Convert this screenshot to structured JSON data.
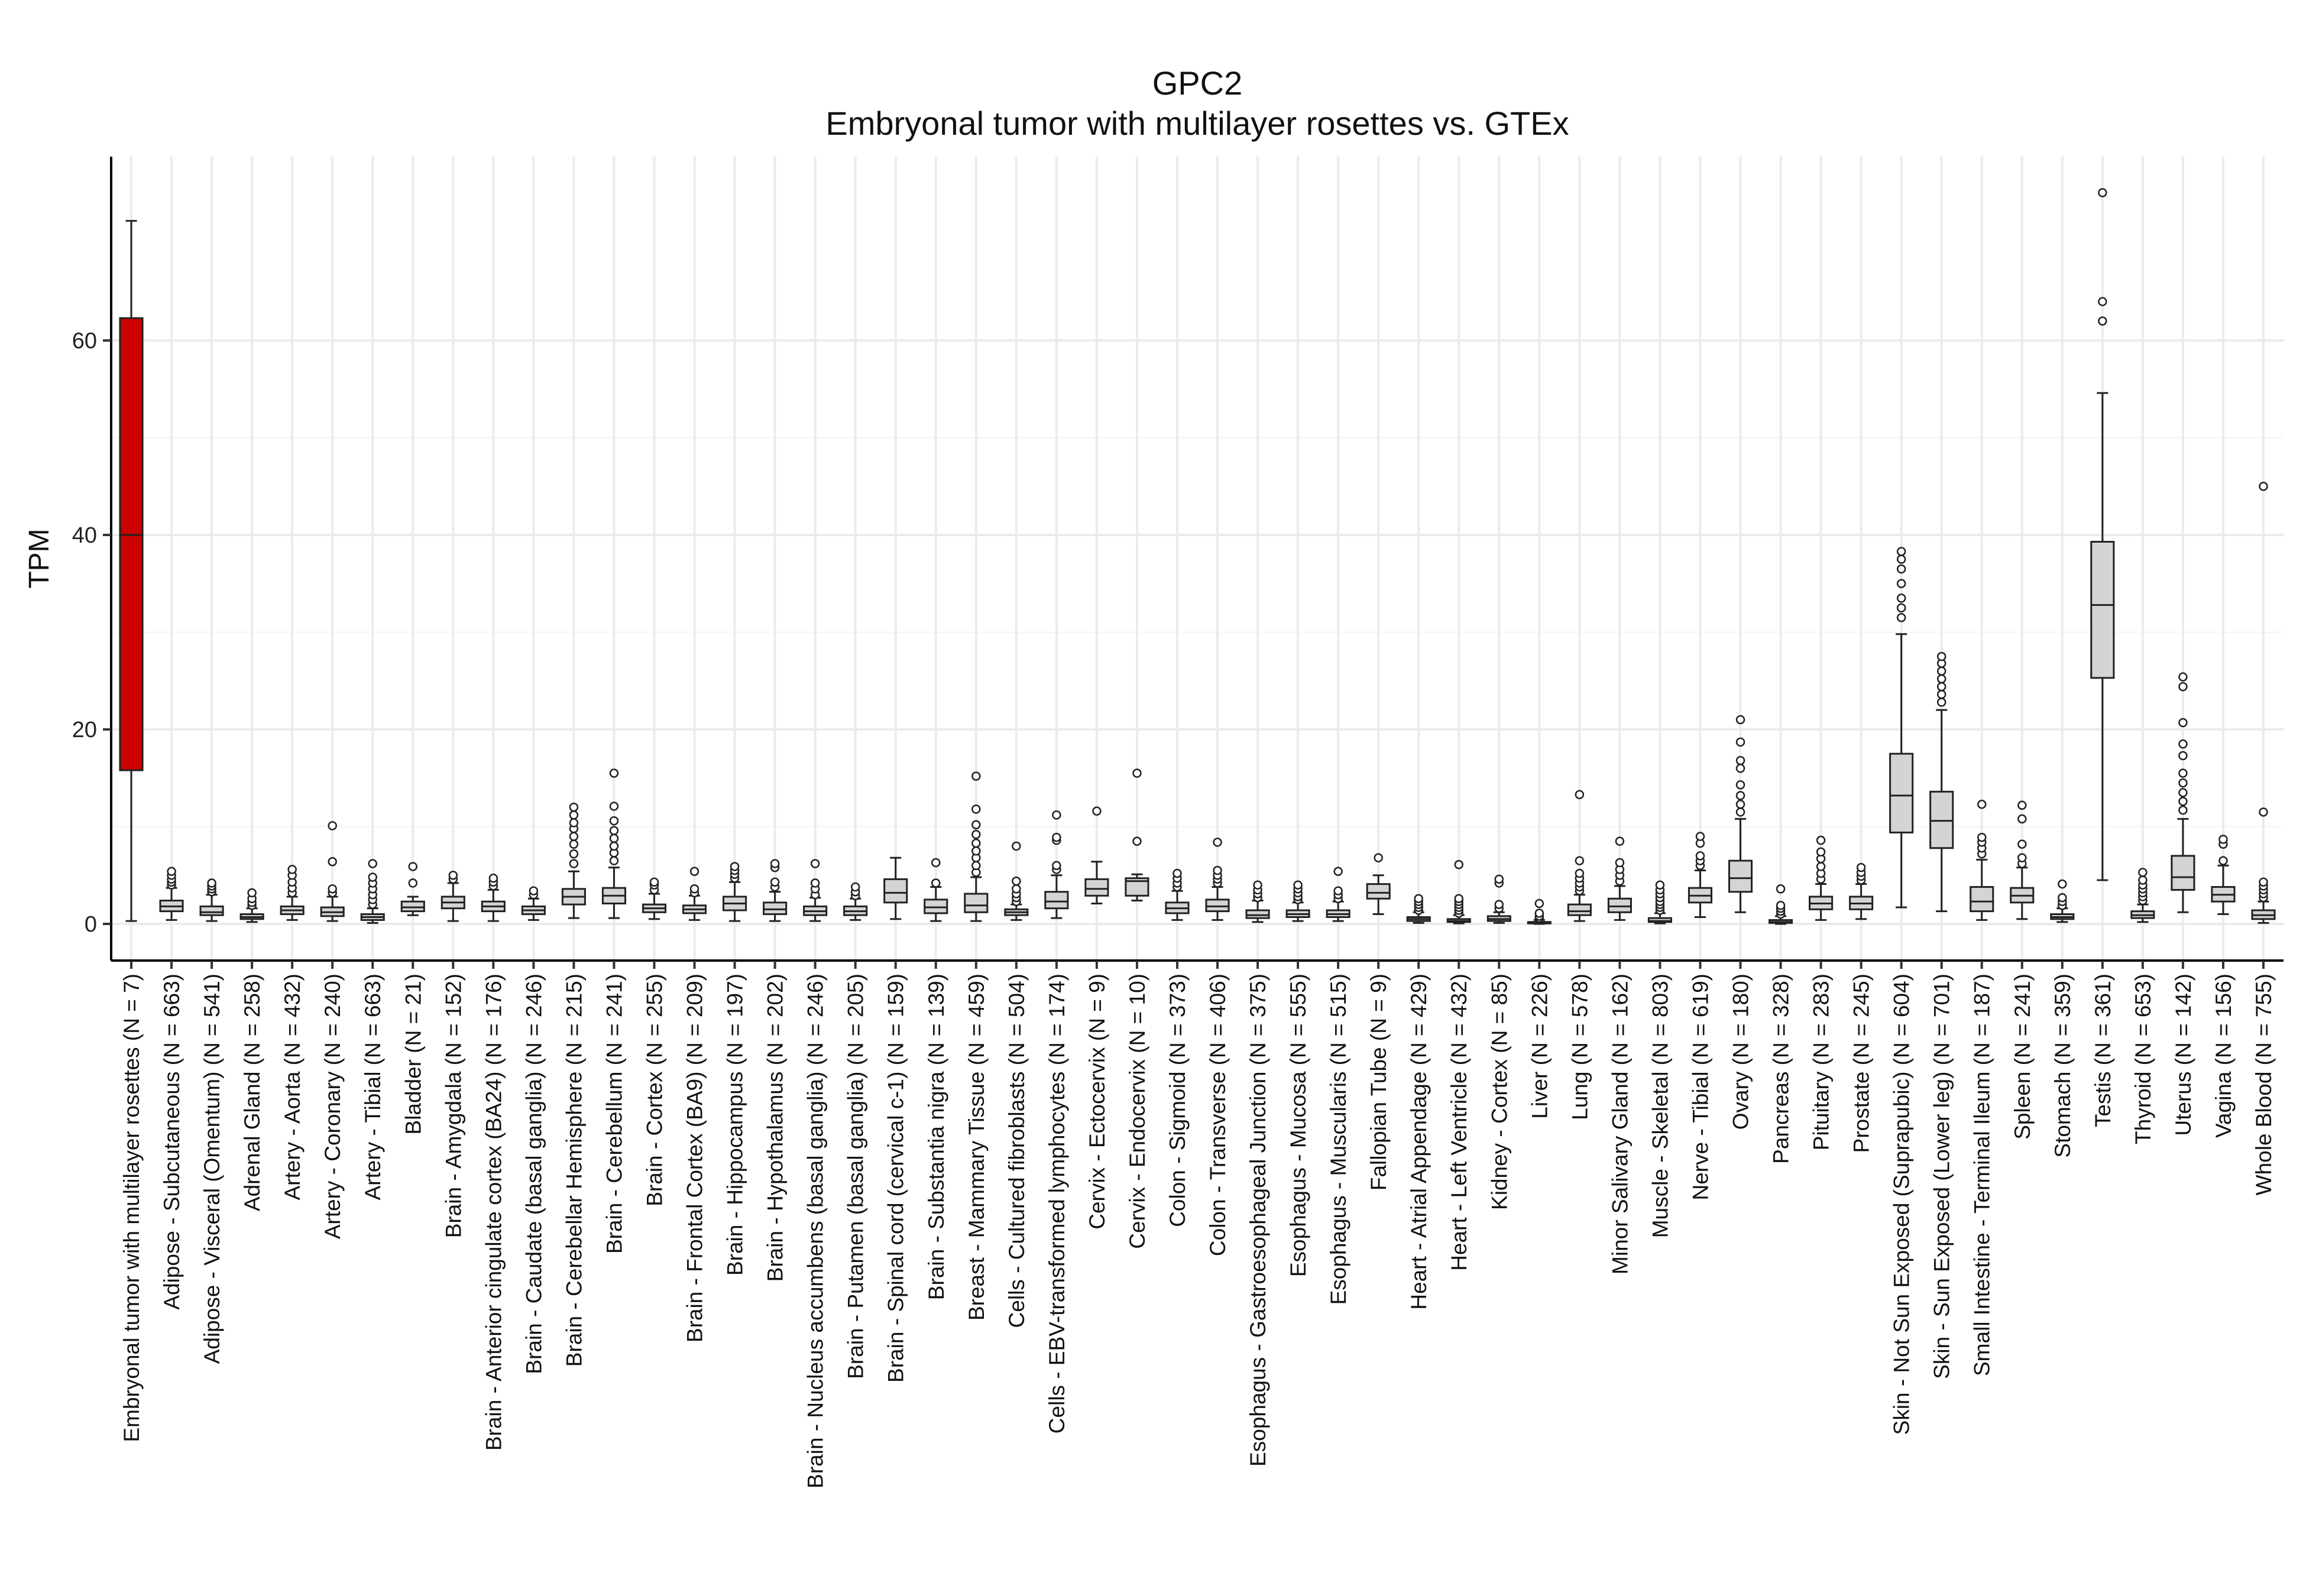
{
  "chart_data": {
    "type": "boxplot",
    "title": "GPC2",
    "subtitle": "Embryonal tumor with multilayer rosettes vs. GTEx",
    "xlabel": "",
    "ylabel": "TPM",
    "ylim": [
      -4,
      79
    ],
    "yticks": [
      0,
      20,
      40,
      60
    ],
    "grid": true,
    "legend": "none",
    "colors": {
      "highlight": "#cc0000",
      "default": "#d4d4d4",
      "stroke": "#222222",
      "grid": "#ebebeb"
    },
    "series": [
      {
        "name": "Embryonal tumor with multilayer rosettes (N = 7)",
        "highlight": true,
        "min": 0.3,
        "q1": 15.8,
        "median": 40,
        "q3": 62.3,
        "max": 72.3,
        "outliers": []
      },
      {
        "name": "Adipose - Subcutaneous (N = 663)",
        "min": 0.4,
        "q1": 1.3,
        "median": 1.8,
        "q3": 2.4,
        "max": 3.7,
        "outliers": [
          4,
          4.3,
          4.6,
          5,
          5.4
        ]
      },
      {
        "name": "Adipose - Visceral (Omentum) (N = 541)",
        "min": 0.3,
        "q1": 0.9,
        "median": 1.2,
        "q3": 1.8,
        "max": 3,
        "outliers": [
          3.3,
          3.6,
          3.9,
          4.2
        ]
      },
      {
        "name": "Adrenal Gland (N = 258)",
        "min": 0.2,
        "q1": 0.5,
        "median": 0.7,
        "q3": 1,
        "max": 1.6,
        "outliers": [
          1.9,
          2.2,
          2.6,
          3.2
        ]
      },
      {
        "name": "Artery - Aorta (N = 432)",
        "min": 0.4,
        "q1": 1,
        "median": 1.4,
        "q3": 1.8,
        "max": 2.8,
        "outliers": [
          3.2,
          3.7,
          4.3,
          5,
          5.6
        ]
      },
      {
        "name": "Artery - Coronary (N = 240)",
        "min": 0.3,
        "q1": 0.8,
        "median": 1.2,
        "q3": 1.7,
        "max": 2.8,
        "outliers": [
          3.2,
          3.6,
          6.4,
          10.1
        ]
      },
      {
        "name": "Artery - Tibial (N = 663)",
        "min": 0.1,
        "q1": 0.4,
        "median": 0.7,
        "q3": 1,
        "max": 1.6,
        "outliers": [
          2,
          2.5,
          3,
          3.6,
          4.2,
          4.8,
          6.2
        ]
      },
      {
        "name": "Bladder (N = 21)",
        "min": 0.9,
        "q1": 1.3,
        "median": 1.7,
        "q3": 2.3,
        "max": 2.8,
        "outliers": [
          4.2,
          5.9
        ]
      },
      {
        "name": "Brain - Amygdala (N = 152)",
        "min": 0.3,
        "q1": 1.6,
        "median": 2.2,
        "q3": 2.8,
        "max": 4.2,
        "outliers": [
          4.6,
          5
        ]
      },
      {
        "name": "Brain - Anterior cingulate cortex (BA24) (N = 176)",
        "min": 0.3,
        "q1": 1.3,
        "median": 1.8,
        "q3": 2.3,
        "max": 3.5,
        "outliers": [
          3.9,
          4.3,
          4.7
        ]
      },
      {
        "name": "Brain - Caudate (basal ganglia) (N = 246)",
        "min": 0.4,
        "q1": 1,
        "median": 1.4,
        "q3": 1.8,
        "max": 2.6,
        "outliers": [
          3,
          3.4
        ]
      },
      {
        "name": "Brain - Cerebellar Hemisphere (N = 215)",
        "min": 0.6,
        "q1": 2,
        "median": 2.8,
        "q3": 3.6,
        "max": 5.4,
        "outliers": [
          6.2,
          7.2,
          8.2,
          9,
          9.8,
          10.4,
          11.2,
          12
        ]
      },
      {
        "name": "Brain - Cerebellum (N = 241)",
        "min": 0.6,
        "q1": 2.1,
        "median": 2.9,
        "q3": 3.7,
        "max": 5.8,
        "outliers": [
          6.5,
          7.3,
          8,
          8.8,
          9.6,
          10.6,
          12.1,
          15.5
        ]
      },
      {
        "name": "Brain - Cortex (N = 255)",
        "min": 0.5,
        "q1": 1.2,
        "median": 1.6,
        "q3": 2,
        "max": 3.1,
        "outliers": [
          3.5,
          4,
          4.3
        ]
      },
      {
        "name": "Brain - Frontal Cortex (BA9) (N = 209)",
        "min": 0.4,
        "q1": 1.1,
        "median": 1.5,
        "q3": 1.9,
        "max": 2.9,
        "outliers": [
          3.2,
          3.6,
          5.4
        ]
      },
      {
        "name": "Brain - Hippocampus (N = 197)",
        "min": 0.3,
        "q1": 1.4,
        "median": 2.1,
        "q3": 2.8,
        "max": 4.3,
        "outliers": [
          4.7,
          5.1,
          5.5,
          5.9
        ]
      },
      {
        "name": "Brain - Hypothalamus (N = 202)",
        "min": 0.3,
        "q1": 1,
        "median": 1.5,
        "q3": 2.2,
        "max": 3.3,
        "outliers": [
          3.8,
          4.3,
          5.8,
          6.2
        ]
      },
      {
        "name": "Brain - Nucleus accumbens (basal ganglia) (N = 246)",
        "min": 0.3,
        "q1": 0.9,
        "median": 1.3,
        "q3": 1.8,
        "max": 2.7,
        "outliers": [
          3,
          3.6,
          4.2,
          6.2
        ]
      },
      {
        "name": "Brain - Putamen (basal ganglia) (N = 205)",
        "min": 0.4,
        "q1": 0.9,
        "median": 1.3,
        "q3": 1.8,
        "max": 2.6,
        "outliers": [
          2.9,
          3.3,
          3.8
        ]
      },
      {
        "name": "Brain - Spinal cord (cervical c-1) (N = 159)",
        "min": 0.5,
        "q1": 2.2,
        "median": 3.2,
        "q3": 4.6,
        "max": 6.8,
        "outliers": []
      },
      {
        "name": "Brain - Substantia nigra (N = 139)",
        "min": 0.3,
        "q1": 1.1,
        "median": 1.7,
        "q3": 2.5,
        "max": 3.8,
        "outliers": [
          4.2,
          6.3
        ]
      },
      {
        "name": "Breast - Mammary Tissue (N = 459)",
        "min": 0.3,
        "q1": 1.2,
        "median": 1.9,
        "q3": 3.1,
        "max": 4.8,
        "outliers": [
          5.3,
          6,
          6.8,
          7.5,
          8.3,
          9.2,
          10.2,
          11.8,
          15.2
        ]
      },
      {
        "name": "Cells - Cultured fibroblasts (N = 504)",
        "min": 0.4,
        "q1": 0.9,
        "median": 1.2,
        "q3": 1.5,
        "max": 2,
        "outliers": [
          2.3,
          2.7,
          3.1,
          3.6,
          4.4,
          8
        ]
      },
      {
        "name": "Cells - EBV-transformed lymphocytes (N = 174)",
        "min": 0.6,
        "q1": 1.6,
        "median": 2.3,
        "q3": 3.3,
        "max": 5,
        "outliers": [
          5.6,
          6,
          8.6,
          8.9,
          11.2
        ]
      },
      {
        "name": "Cervix - Ectocervix (N = 9)",
        "min": 2.1,
        "q1": 2.9,
        "median": 3.6,
        "q3": 4.6,
        "max": 6.4,
        "outliers": [
          11.6
        ]
      },
      {
        "name": "Cervix - Endocervix (N = 10)",
        "min": 2.4,
        "q1": 2.9,
        "median": 4.4,
        "q3": 4.7,
        "max": 5.1,
        "outliers": [
          8.5,
          15.5
        ]
      },
      {
        "name": "Colon - Sigmoid (N = 373)",
        "min": 0.4,
        "q1": 1.1,
        "median": 1.6,
        "q3": 2.2,
        "max": 3.4,
        "outliers": [
          3.8,
          4.2,
          4.7,
          5.2
        ]
      },
      {
        "name": "Colon - Transverse (N = 406)",
        "min": 0.4,
        "q1": 1.3,
        "median": 1.8,
        "q3": 2.5,
        "max": 3.8,
        "outliers": [
          4.2,
          4.6,
          5,
          5.5,
          8.4
        ]
      },
      {
        "name": "Esophagus - Gastroesophageal Junction (N = 375)",
        "min": 0.2,
        "q1": 0.6,
        "median": 0.9,
        "q3": 1.4,
        "max": 2.4,
        "outliers": [
          2.7,
          3.1,
          3.5,
          4
        ]
      },
      {
        "name": "Esophagus - Mucosa (N = 555)",
        "min": 0.3,
        "q1": 0.7,
        "median": 1,
        "q3": 1.4,
        "max": 2.2,
        "outliers": [
          2.5,
          2.8,
          3.2,
          3.6,
          4
        ]
      },
      {
        "name": "Esophagus - Muscularis (N = 515)",
        "min": 0.3,
        "q1": 0.7,
        "median": 1,
        "q3": 1.4,
        "max": 2.3,
        "outliers": [
          2.6,
          3,
          3.4,
          5.4
        ]
      },
      {
        "name": "Fallopian Tube (N = 9)",
        "min": 1,
        "q1": 2.6,
        "median": 3.2,
        "q3": 4.1,
        "max": 5,
        "outliers": [
          6.8
        ]
      },
      {
        "name": "Heart - Atrial Appendage (N = 429)",
        "min": 0.1,
        "q1": 0.3,
        "median": 0.5,
        "q3": 0.7,
        "max": 1.2,
        "outliers": [
          1.4,
          1.7,
          2,
          2.3,
          2.6
        ]
      },
      {
        "name": "Heart - Left Ventricle (N = 432)",
        "min": 0.05,
        "q1": 0.2,
        "median": 0.3,
        "q3": 0.5,
        "max": 0.9,
        "outliers": [
          1.1,
          1.4,
          1.7,
          2,
          2.3,
          2.6,
          6.1
        ]
      },
      {
        "name": "Kidney - Cortex (N = 85)",
        "min": 0.1,
        "q1": 0.3,
        "median": 0.5,
        "q3": 0.8,
        "max": 1.2,
        "outliers": [
          1.6,
          2,
          4.2,
          4.6
        ]
      },
      {
        "name": "Liver (N = 226)",
        "min": 0,
        "q1": 0.05,
        "median": 0.1,
        "q3": 0.2,
        "max": 0.4,
        "outliers": [
          0.6,
          0.8,
          1.1,
          2.1
        ]
      },
      {
        "name": "Lung (N = 578)",
        "min": 0.3,
        "q1": 0.9,
        "median": 1.3,
        "q3": 2,
        "max": 3,
        "outliers": [
          3.4,
          3.8,
          4.2,
          4.7,
          5.2,
          6.5,
          13.3
        ]
      },
      {
        "name": "Minor Salivary Gland (N = 162)",
        "min": 0.4,
        "q1": 1.2,
        "median": 1.8,
        "q3": 2.6,
        "max": 3.9,
        "outliers": [
          4.4,
          5,
          5.6,
          6.3,
          8.5
        ]
      },
      {
        "name": "Muscle - Skeletal (N = 803)",
        "min": 0.05,
        "q1": 0.2,
        "median": 0.3,
        "q3": 0.6,
        "max": 1.1,
        "outliers": [
          1.4,
          1.7,
          2,
          2.3,
          2.7,
          3.1,
          3.5,
          4
        ]
      },
      {
        "name": "Nerve - Tibial (N = 619)",
        "min": 0.7,
        "q1": 2.2,
        "median": 2.9,
        "q3": 3.7,
        "max": 5.5,
        "outliers": [
          6,
          6.5,
          7,
          8.3,
          9
        ]
      },
      {
        "name": "Ovary (N = 180)",
        "min": 1.2,
        "q1": 3.3,
        "median": 4.7,
        "q3": 6.5,
        "max": 10.8,
        "outliers": [
          11.5,
          12.3,
          13.2,
          14.3,
          16,
          16.8,
          18.7,
          21
        ]
      },
      {
        "name": "Pancreas (N = 328)",
        "min": 0,
        "q1": 0.1,
        "median": 0.2,
        "q3": 0.4,
        "max": 0.8,
        "outliers": [
          1,
          1.3,
          1.6,
          1.9,
          3.6
        ]
      },
      {
        "name": "Pituitary (N = 283)",
        "min": 0.4,
        "q1": 1.5,
        "median": 2.1,
        "q3": 2.8,
        "max": 4.1,
        "outliers": [
          4.6,
          5.2,
          5.9,
          6.7,
          7.4,
          8.6
        ]
      },
      {
        "name": "Prostate (N = 245)",
        "min": 0.5,
        "q1": 1.5,
        "median": 2.1,
        "q3": 2.8,
        "max": 4.1,
        "outliers": [
          4.5,
          4.9,
          5.3,
          5.8
        ]
      },
      {
        "name": "Skin - Not Sun Exposed (Suprapubic) (N = 604)",
        "min": 1.7,
        "q1": 9.4,
        "median": 13.2,
        "q3": 17.5,
        "max": 29.8,
        "outliers": [
          31.5,
          32.5,
          33.5,
          35,
          36.5,
          37.5,
          38.3
        ]
      },
      {
        "name": "Skin - Sun Exposed (Lower leg) (N = 701)",
        "min": 1.3,
        "q1": 7.8,
        "median": 10.6,
        "q3": 13.6,
        "max": 22,
        "outliers": [
          22.8,
          23.6,
          24.4,
          25.2,
          26,
          26.8,
          27.5
        ]
      },
      {
        "name": "Small Intestine - Terminal Ileum (N = 187)",
        "min": 0.4,
        "q1": 1.3,
        "median": 2.3,
        "q3": 3.8,
        "max": 6.6,
        "outliers": [
          7.2,
          7.8,
          8.4,
          8.9,
          12.3
        ]
      },
      {
        "name": "Spleen (N = 241)",
        "min": 0.5,
        "q1": 2.2,
        "median": 2.9,
        "q3": 3.7,
        "max": 5.8,
        "outliers": [
          6.2,
          6.8,
          8.2,
          10.8,
          12.2
        ]
      },
      {
        "name": "Stomach (N = 359)",
        "min": 0.2,
        "q1": 0.5,
        "median": 0.7,
        "q3": 1,
        "max": 1.6,
        "outliers": [
          1.9,
          2.3,
          2.7,
          4.1
        ]
      },
      {
        "name": "Testis (N = 361)",
        "min": 4.5,
        "q1": 25.3,
        "median": 32.8,
        "q3": 39.3,
        "max": 54.6,
        "outliers": [
          62,
          64,
          75.2
        ]
      },
      {
        "name": "Thyroid (N = 653)",
        "min": 0.2,
        "q1": 0.6,
        "median": 0.9,
        "q3": 1.3,
        "max": 2,
        "outliers": [
          2.4,
          2.8,
          3.2,
          3.6,
          4,
          4.5,
          5.3
        ]
      },
      {
        "name": "Uterus (N = 142)",
        "min": 1.2,
        "q1": 3.5,
        "median": 4.8,
        "q3": 7,
        "max": 10.8,
        "outliers": [
          11.7,
          12.6,
          13.5,
          14.5,
          15.5,
          17.3,
          18.5,
          20.7,
          24.4,
          25.4
        ]
      },
      {
        "name": "Vagina (N = 156)",
        "min": 1,
        "q1": 2.3,
        "median": 3,
        "q3": 3.8,
        "max": 6,
        "outliers": [
          6.5,
          8.2,
          8.7
        ]
      },
      {
        "name": "Whole Blood (N = 755)",
        "min": 0.1,
        "q1": 0.5,
        "median": 0.9,
        "q3": 1.4,
        "max": 2.3,
        "outliers": [
          2.7,
          3.1,
          3.5,
          3.9,
          4.3,
          11.5,
          45
        ]
      }
    ]
  }
}
